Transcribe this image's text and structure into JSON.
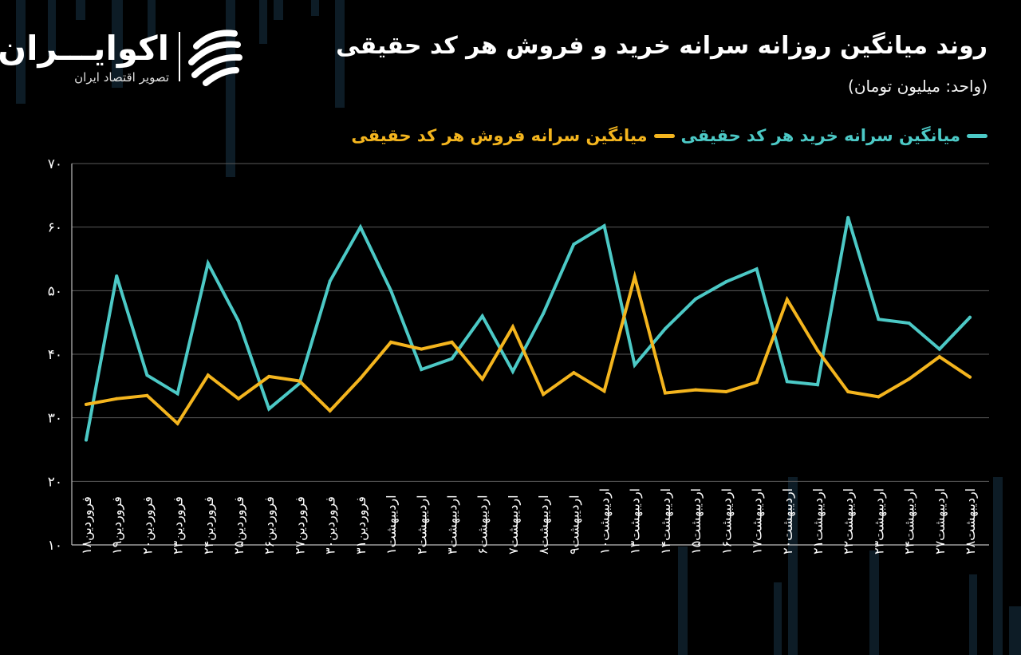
{
  "header": {
    "title": "روند میانگین روزانه سرانه خرید و فروش هر کد حقیقی",
    "unit": "(واحد: میلیون تومان)"
  },
  "logo": {
    "name": "اکوایـــران",
    "subtitle": "تصویر اقتصاد ایران",
    "mark_icon": "ecoiran-logo-icon"
  },
  "colors": {
    "background": "#000000",
    "buy": "#4cc9c6",
    "sell": "#f4b51e",
    "grid": "#5a5a5a"
  },
  "chart_data": {
    "type": "line",
    "title": "روند میانگین روزانه سرانه خرید و فروش هر کد حقیقی",
    "ylabel": "(واحد: میلیون تومان)",
    "xlabel": "",
    "ylim": [
      10,
      70
    ],
    "y_ticks": [
      "۱۰",
      "۲۰",
      "۳۰",
      "۴۰",
      "۵۰",
      "۶۰",
      "۷۰"
    ],
    "y_tick_values": [
      10,
      20,
      30,
      40,
      50,
      60,
      70
    ],
    "grid": true,
    "legend_position": "top-right",
    "categories": [
      "فروردین۱۸",
      "فروردین۱۹",
      "فروردین۲۰",
      "فروردین۲۳",
      "فروردین۲۴",
      "فروردین۲۵",
      "فروردین۲۶",
      "فروردین۲۷",
      "فروردین۳۰",
      "فروردین۳۱",
      "اردیبهشت۱",
      "اردیبهشت۲",
      "اردیبهشت۳",
      "اردیبهشت۶",
      "اردیبهشت۷",
      "اردیبهشت۸",
      "اردیبهشت۹",
      "اردیبهشت۱۰",
      "اردیبهشت۱۳",
      "اردیبهشت۱۴",
      "اردیبهشت۱۵",
      "اردیبهشت۱۶",
      "اردیبهشت۱۷",
      "اردیبهشت۲۰",
      "اردیبهشت۲۱",
      "اردیبهشت۲۲",
      "اردیبهشت۲۳",
      "اردیبهشت۲۴",
      "اردیبهشت۲۷",
      "اردیبهشت۲۸"
    ],
    "series": [
      {
        "name": "میانگین سرانه خرید هر کد حقیقی",
        "color": "#4cc9c6",
        "values": [
          26.5,
          52.3,
          36.7,
          33.8,
          54.3,
          45.2,
          31.4,
          35.4,
          51.5,
          60.0,
          50.0,
          37.6,
          39.3,
          46.0,
          37.3,
          46.4,
          57.3,
          60.2,
          38.3,
          44.0,
          48.7,
          51.4,
          53.4,
          35.7,
          35.2,
          61.5,
          45.5,
          44.9,
          40.8,
          45.8
        ]
      },
      {
        "name": "میانگین سرانه فروش هر کد حقیقی",
        "color": "#f4b51e",
        "values": [
          32.1,
          33.0,
          33.5,
          29.1,
          36.7,
          33.0,
          36.5,
          35.8,
          31.1,
          36.2,
          41.9,
          40.8,
          41.9,
          36.1,
          44.3,
          33.7,
          37.1,
          34.2,
          52.2,
          33.9,
          34.4,
          34.1,
          35.6,
          48.6,
          40.6,
          34.1,
          33.3,
          36.1,
          39.6,
          36.4
        ]
      }
    ]
  }
}
